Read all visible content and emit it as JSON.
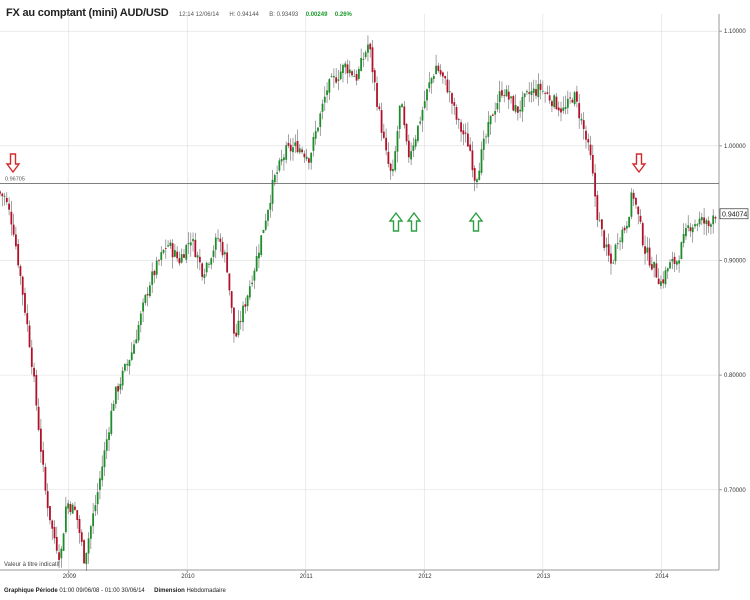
{
  "header": {
    "title": "FX au comptant  (mini) AUD/USD",
    "time_date": "12:14 12/06/14",
    "high": "H: 0.94144",
    "bid": "B: 0.93493",
    "change": "0.00249",
    "change_pct": "0.26%"
  },
  "footer": {
    "period_label": "Graphique Période",
    "period_value": "01:00 09/06/08 - 01:00 30/06/14",
    "dimension_label": "Dimension",
    "dimension_value": "Hebdomadaire"
  },
  "value_note": "Valeur à titre indicatif",
  "colors": {
    "up": "#1e8c2a",
    "down": "#b3102a",
    "grid": "#dddddd",
    "hline": "#555555",
    "arrow_up": "#2ea043",
    "arrow_down": "#d22a2a"
  },
  "chart_data": {
    "type": "candlestick",
    "instrument": "AUD/USD",
    "interval": "weekly",
    "x_ticks": [
      "2009",
      "2010",
      "2011",
      "2012",
      "2013",
      "2014"
    ],
    "y_ticks": [
      "0.70000",
      "0.80000",
      "0.90000",
      "1.00000",
      "1.10000"
    ],
    "ylim": [
      0.63,
      1.115
    ],
    "horizontal_line": {
      "value": 0.96705,
      "label": "0.96705"
    },
    "last_price": "0.94074",
    "anchors": [
      {
        "t": 2008.42,
        "v": 0.96
      },
      {
        "t": 2008.48,
        "v": 0.955
      },
      {
        "t": 2008.55,
        "v": 0.93
      },
      {
        "t": 2008.62,
        "v": 0.88
      },
      {
        "t": 2008.7,
        "v": 0.82
      },
      {
        "t": 2008.76,
        "v": 0.76
      },
      {
        "t": 2008.82,
        "v": 0.7
      },
      {
        "t": 2008.88,
        "v": 0.665
      },
      {
        "t": 2008.95,
        "v": 0.64
      },
      {
        "t": 2009.0,
        "v": 0.69
      },
      {
        "t": 2009.08,
        "v": 0.68
      },
      {
        "t": 2009.15,
        "v": 0.64
      },
      {
        "t": 2009.25,
        "v": 0.69
      },
      {
        "t": 2009.4,
        "v": 0.78
      },
      {
        "t": 2009.55,
        "v": 0.82
      },
      {
        "t": 2009.7,
        "v": 0.88
      },
      {
        "t": 2009.85,
        "v": 0.915
      },
      {
        "t": 2009.95,
        "v": 0.9
      },
      {
        "t": 2010.05,
        "v": 0.92
      },
      {
        "t": 2010.15,
        "v": 0.89
      },
      {
        "t": 2010.28,
        "v": 0.92
      },
      {
        "t": 2010.35,
        "v": 0.9
      },
      {
        "t": 2010.42,
        "v": 0.83
      },
      {
        "t": 2010.5,
        "v": 0.86
      },
      {
        "t": 2010.6,
        "v": 0.9
      },
      {
        "t": 2010.75,
        "v": 0.97
      },
      {
        "t": 2010.85,
        "v": 0.995
      },
      {
        "t": 2010.95,
        "v": 1.0
      },
      {
        "t": 2011.05,
        "v": 0.99
      },
      {
        "t": 2011.2,
        "v": 1.05
      },
      {
        "t": 2011.35,
        "v": 1.07
      },
      {
        "t": 2011.45,
        "v": 1.06
      },
      {
        "t": 2011.55,
        "v": 1.09
      },
      {
        "t": 2011.62,
        "v": 1.04
      },
      {
        "t": 2011.7,
        "v": 0.99
      },
      {
        "t": 2011.75,
        "v": 0.97
      },
      {
        "t": 2011.82,
        "v": 1.04
      },
      {
        "t": 2011.88,
        "v": 0.99
      },
      {
        "t": 2011.95,
        "v": 1.01
      },
      {
        "t": 2012.05,
        "v": 1.05
      },
      {
        "t": 2012.12,
        "v": 1.07
      },
      {
        "t": 2012.22,
        "v": 1.05
      },
      {
        "t": 2012.3,
        "v": 1.02
      },
      {
        "t": 2012.4,
        "v": 1.0
      },
      {
        "t": 2012.45,
        "v": 0.97
      },
      {
        "t": 2012.52,
        "v": 1.0
      },
      {
        "t": 2012.6,
        "v": 1.03
      },
      {
        "t": 2012.68,
        "v": 1.05
      },
      {
        "t": 2012.8,
        "v": 1.03
      },
      {
        "t": 2012.9,
        "v": 1.045
      },
      {
        "t": 2013.0,
        "v": 1.05
      },
      {
        "t": 2013.1,
        "v": 1.04
      },
      {
        "t": 2013.2,
        "v": 1.03
      },
      {
        "t": 2013.28,
        "v": 1.045
      },
      {
        "t": 2013.35,
        "v": 1.02
      },
      {
        "t": 2013.42,
        "v": 0.99
      },
      {
        "t": 2013.48,
        "v": 0.94
      },
      {
        "t": 2013.55,
        "v": 0.91
      },
      {
        "t": 2013.6,
        "v": 0.895
      },
      {
        "t": 2013.65,
        "v": 0.92
      },
      {
        "t": 2013.72,
        "v": 0.93
      },
      {
        "t": 2013.78,
        "v": 0.96
      },
      {
        "t": 2013.82,
        "v": 0.94
      },
      {
        "t": 2013.88,
        "v": 0.91
      },
      {
        "t": 2013.95,
        "v": 0.895
      },
      {
        "t": 2014.02,
        "v": 0.88
      },
      {
        "t": 2014.08,
        "v": 0.895
      },
      {
        "t": 2014.15,
        "v": 0.9
      },
      {
        "t": 2014.25,
        "v": 0.93
      },
      {
        "t": 2014.35,
        "v": 0.935
      },
      {
        "t": 2014.42,
        "v": 0.93
      },
      {
        "t": 2014.45,
        "v": 0.941
      }
    ]
  }
}
